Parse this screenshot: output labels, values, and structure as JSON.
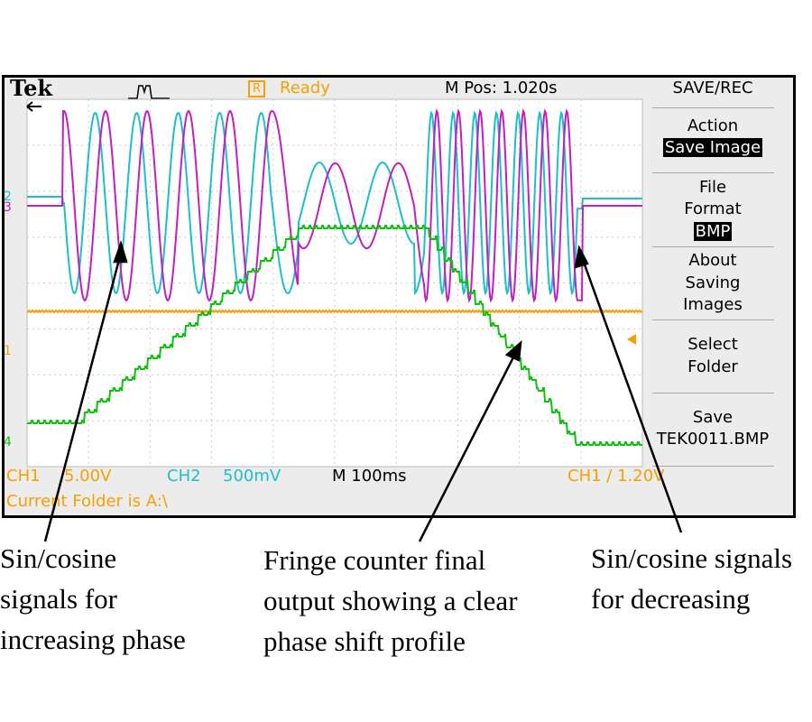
{
  "header": {
    "brand": "Tek",
    "trigger_icon": "acquisition-waveform-icon",
    "status_badge": "R",
    "status": "Ready",
    "position": "M Pos: 1.020s",
    "menu_title": "SAVE/REC"
  },
  "menu": {
    "action_label": "Action",
    "action_value": "Save Image",
    "file_label": "File",
    "format_label": "Format",
    "format_value": "BMP",
    "about1": "About",
    "about2": "Saving",
    "about3": "Images",
    "select1": "Select",
    "select2": "Folder",
    "save_label": "Save",
    "save_file": "TEK0011.BMP"
  },
  "footer": {
    "ch1_label": "CH1",
    "ch1_scale": "5.00V",
    "ch2_label": "CH2",
    "ch2_scale": "500mV",
    "timebase": "M 100ms",
    "trigger": "CH1 ∕ 1.20V",
    "folder": "Current Folder is A:\\"
  },
  "markers": {
    "ch1": "1",
    "ch2": "2",
    "ch3": "3",
    "ch4": "4"
  },
  "colors": {
    "ch1": "#f5a000",
    "ch2": "#1cc0c8",
    "ch3": "#c020c0",
    "ch4": "#10c010"
  },
  "annotations": {
    "left": [
      "Sin/cosine",
      "signals for",
      "increasing phase"
    ],
    "middle": [
      "Fringe counter final",
      "output showing a clear",
      "phase shift profile"
    ],
    "right": [
      "Sin/cosine signals",
      "for decreasing"
    ]
  }
}
